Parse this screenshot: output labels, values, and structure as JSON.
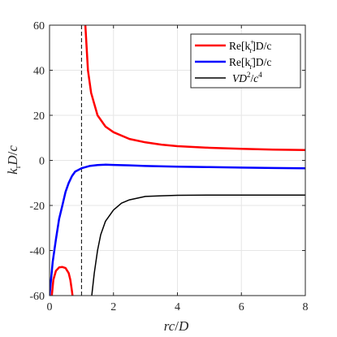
{
  "chart_data": {
    "type": "line",
    "xlabel": "rc/D",
    "ylabel": "k_r D/c",
    "xlim": [
      0,
      8
    ],
    "ylim": [
      -60,
      60
    ],
    "x_ticks": [
      0,
      2,
      4,
      6,
      8
    ],
    "x_tick_labels": [
      "0",
      "2",
      "4",
      "6",
      "8"
    ],
    "y_ticks": [
      -60,
      -40,
      -20,
      0,
      20,
      40,
      60
    ],
    "y_tick_labels": [
      "-60",
      "-40",
      "-20",
      "0",
      "20",
      "40",
      "60"
    ],
    "grid": true,
    "legend_position": "top-right",
    "vertical_reference_line": {
      "x": 1,
      "style": "dashed",
      "color": "#000000"
    },
    "series": [
      {
        "name": "Re[k_r^+]D/c",
        "color": "#ff0000",
        "segments": [
          [
            [
              0.07,
              -60
            ],
            [
              0.12,
              -53
            ],
            [
              0.2,
              -49
            ],
            [
              0.3,
              -47.5
            ],
            [
              0.4,
              -47.3
            ],
            [
              0.5,
              -47.8
            ],
            [
              0.6,
              -50
            ],
            [
              0.65,
              -53
            ],
            [
              0.7,
              -58
            ],
            [
              0.72,
              -60
            ]
          ],
          [
            [
              1.12,
              60
            ],
            [
              1.2,
              40
            ],
            [
              1.3,
              30
            ],
            [
              1.5,
              20
            ],
            [
              1.75,
              15
            ],
            [
              2,
              12.5
            ],
            [
              2.5,
              9.5
            ],
            [
              3,
              8
            ],
            [
              3.5,
              7
            ],
            [
              4,
              6.3
            ],
            [
              5,
              5.6
            ],
            [
              6,
              5.1
            ],
            [
              7,
              4.8
            ],
            [
              8,
              4.6
            ]
          ]
        ]
      },
      {
        "name": "Re[k_r^-]D/c",
        "color": "#0000ff",
        "segments": [
          [
            [
              0,
              -60
            ],
            [
              0.1,
              -45
            ],
            [
              0.2,
              -35
            ],
            [
              0.3,
              -26
            ],
            [
              0.4,
              -20
            ],
            [
              0.5,
              -14
            ],
            [
              0.6,
              -10
            ],
            [
              0.7,
              -7
            ],
            [
              0.8,
              -5
            ],
            [
              1,
              -3.5
            ],
            [
              1.25,
              -2.5
            ],
            [
              1.5,
              -2.1
            ],
            [
              1.75,
              -1.9
            ],
            [
              2,
              -2
            ],
            [
              2.5,
              -2.2
            ],
            [
              3,
              -2.5
            ],
            [
              4,
              -2.8
            ],
            [
              5,
              -3
            ],
            [
              6,
              -3.2
            ],
            [
              7,
              -3.4
            ],
            [
              8,
              -3.5
            ]
          ]
        ]
      },
      {
        "name": "VD^2/c^4",
        "color": "#000000",
        "segments": [
          [
            [
              1.32,
              -60
            ],
            [
              1.4,
              -50
            ],
            [
              1.5,
              -40
            ],
            [
              1.6,
              -33
            ],
            [
              1.75,
              -27
            ],
            [
              2,
              -22
            ],
            [
              2.25,
              -19
            ],
            [
              2.5,
              -17.5
            ],
            [
              3,
              -16
            ],
            [
              3.5,
              -15.7
            ],
            [
              4,
              -15.5
            ],
            [
              5,
              -15.4
            ],
            [
              6,
              -15.4
            ],
            [
              7,
              -15.4
            ],
            [
              8,
              -15.4
            ]
          ]
        ]
      }
    ]
  }
}
